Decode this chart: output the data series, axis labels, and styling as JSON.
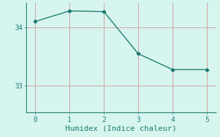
{
  "x": [
    0,
    1,
    2,
    3,
    4,
    5
  ],
  "y": [
    34.1,
    34.28,
    34.27,
    33.55,
    33.28,
    33.28
  ],
  "line_color": "#1a7a6e",
  "marker": "D",
  "marker_size": 2.5,
  "background_color": "#d6f5ef",
  "grid_color": "#d4a0a0",
  "xlabel": "Humidex (Indice chaleur)",
  "xlabel_fontsize": 8,
  "xlabel_color": "#1a7a6e",
  "tick_color": "#1a7a6e",
  "yticks": [
    33,
    34
  ],
  "xticks": [
    0,
    1,
    2,
    3,
    4,
    5
  ],
  "ylim": [
    32.55,
    34.42
  ],
  "xlim": [
    -0.25,
    5.25
  ]
}
